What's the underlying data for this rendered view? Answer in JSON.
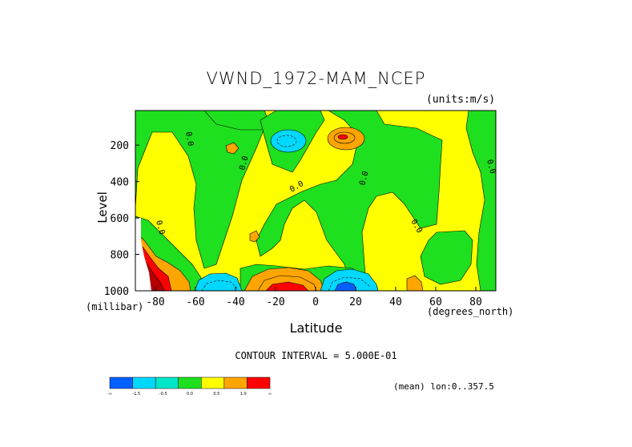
{
  "chart_data": {
    "type": "contour",
    "title": "VWND_1972-MAM_NCEP",
    "units_label": "(units:m/s)",
    "xlabel": "Latitude",
    "x_unit_label": "(degrees_north)",
    "ylabel": "Level",
    "y_unit_label": "(millibar)",
    "xlim": [
      -90,
      90
    ],
    "ylim": [
      1000,
      10
    ],
    "x_ticks": [
      -80,
      -60,
      -40,
      -20,
      0,
      20,
      40,
      60,
      80
    ],
    "y_ticks": [
      200,
      400,
      600,
      800,
      1000
    ],
    "contour_interval_label": "CONTOUR INTERVAL = 5.000E-01",
    "annotation": "(mean) lon:0..357.5",
    "colorbar": {
      "bins": [
        {
          "color": "#0060ff"
        },
        {
          "color": "#00d8ff"
        },
        {
          "color": "#00e6c8"
        },
        {
          "color": "#1ee01e"
        },
        {
          "color": "#ffff00"
        },
        {
          "color": "#ffa500"
        },
        {
          "color": "#ff0000"
        }
      ],
      "labels": [
        "-∞",
        "-1.5",
        "-0.5",
        "0.0",
        "0.5",
        "1.0",
        "∞"
      ]
    },
    "features": [
      {
        "kind": "max",
        "lat": 12,
        "level": 160,
        "value": 1.5
      },
      {
        "kind": "min",
        "lat": -13,
        "level": 180,
        "value": -1.0
      },
      {
        "kind": "max",
        "lat": -15,
        "level": 960,
        "value": 1.5
      },
      {
        "kind": "min",
        "lat": 15,
        "level": 960,
        "value": -1.5
      },
      {
        "kind": "min",
        "lat": -52,
        "level": 960,
        "value": -1.0
      },
      {
        "kind": "max",
        "lat": -88,
        "level": 950,
        "value": 2.0
      }
    ]
  }
}
